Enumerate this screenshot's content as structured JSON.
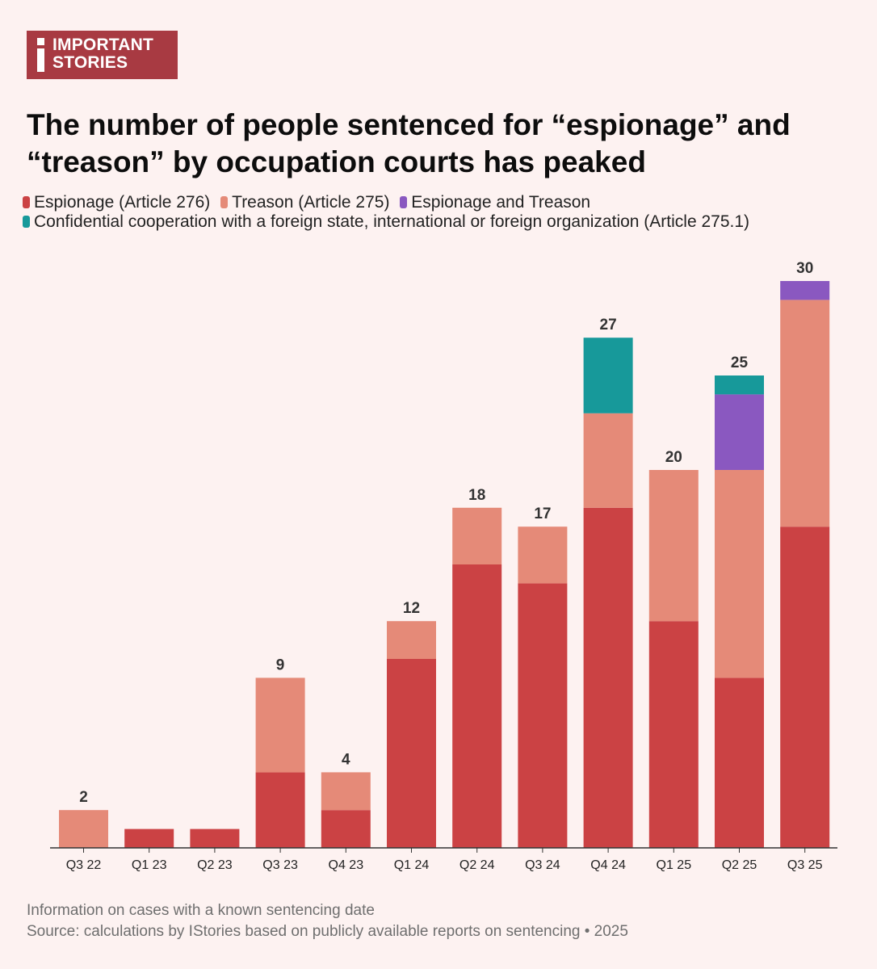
{
  "logo": {
    "line1": "IMPORTANT",
    "line2": "STORIES",
    "bg_color": "#a83a42"
  },
  "title": "The number of people sentenced for “espionage” and “treason” by occupation courts has peaked",
  "legend": [
    {
      "label": "Espionage (Article 276)",
      "color": "#cb4244"
    },
    {
      "label": "Treason (Article 275)",
      "color": "#e58a78"
    },
    {
      "label": "Espionage and Treason",
      "color": "#8a58c0"
    },
    {
      "label": "Confidential cooperation with a foreign state, international or foreign organization (Article 275.1)",
      "color": "#17999a"
    }
  ],
  "footer": {
    "note": "Information on cases with a known sentencing date",
    "source": "Source: calculations by IStories based on publicly available reports on sentencing • 2025"
  },
  "chart_data": {
    "type": "bar",
    "stacked": true,
    "title": "The number of people sentenced for “espionage” and “treason” by occupation courts has peaked",
    "xlabel": "",
    "ylabel": "",
    "ylim": [
      0,
      30
    ],
    "grid": false,
    "categories": [
      "Q3 22",
      "Q1 23",
      "Q2 23",
      "Q3 23",
      "Q4 23",
      "Q1 24",
      "Q2 24",
      "Q3 24",
      "Q4 24",
      "Q1 25",
      "Q2 25",
      "Q3 25"
    ],
    "series": [
      {
        "name": "Espionage (Article 276)",
        "color": "#cb4244",
        "values": [
          0,
          1,
          1,
          4,
          2,
          10,
          15,
          14,
          18,
          12,
          9,
          17
        ]
      },
      {
        "name": "Treason (Article 275)",
        "color": "#e58a78",
        "values": [
          2,
          0,
          0,
          5,
          2,
          2,
          3,
          3,
          5,
          8,
          11,
          12
        ]
      },
      {
        "name": "Espionage and Treason",
        "color": "#8a58c0",
        "values": [
          0,
          0,
          0,
          0,
          0,
          0,
          0,
          0,
          0,
          0,
          4,
          1
        ]
      },
      {
        "name": "Confidential cooperation with a foreign state, international or foreign organization (Article 275.1)",
        "color": "#17999a",
        "values": [
          0,
          0,
          0,
          0,
          0,
          0,
          0,
          0,
          4,
          0,
          1,
          0
        ]
      }
    ],
    "totals": [
      2,
      null,
      null,
      9,
      4,
      12,
      18,
      17,
      27,
      20,
      25,
      30
    ],
    "axis_color": "#333333"
  }
}
